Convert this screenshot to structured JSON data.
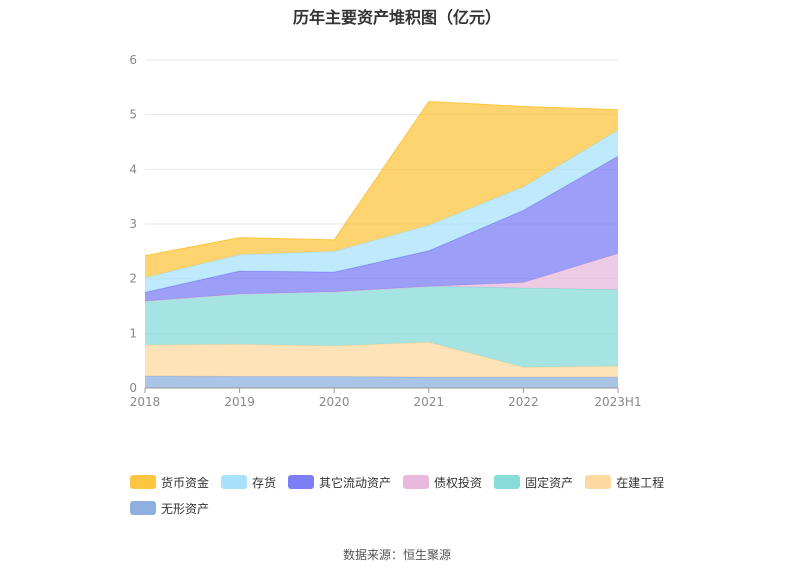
{
  "title": "历年主要资产堆积图（亿元）",
  "source": "数据来源：恒生聚源",
  "chart_data": {
    "type": "area",
    "stacked": true,
    "title": "历年主要资产堆积图（亿元）",
    "xlabel": "",
    "ylabel": "",
    "categories": [
      "2018",
      "2019",
      "2020",
      "2021",
      "2022",
      "2023H1"
    ],
    "ylim": [
      0,
      6
    ],
    "yticks": [
      0,
      1,
      2,
      3,
      4,
      5,
      6
    ],
    "grid": true,
    "legend_position": "bottom",
    "series": [
      {
        "name": "无形资产",
        "color": "#8eb0e0",
        "values": [
          0.22,
          0.21,
          0.21,
          0.2,
          0.2,
          0.2
        ]
      },
      {
        "name": "在建工程",
        "color": "#fdd8a0",
        "values": [
          0.57,
          0.59,
          0.56,
          0.64,
          0.18,
          0.2
        ]
      },
      {
        "name": "固定资产",
        "color": "#87dbd8",
        "values": [
          0.8,
          0.92,
          0.99,
          1.02,
          1.45,
          1.4
        ]
      },
      {
        "name": "债权投资",
        "color": "#e8b9dc",
        "values": [
          0.0,
          0.0,
          0.0,
          0.0,
          0.1,
          0.66
        ]
      },
      {
        "name": "其它流动资产",
        "color": "#7b7ef5",
        "values": [
          0.16,
          0.42,
          0.36,
          0.65,
          1.32,
          1.78
        ]
      },
      {
        "name": "存货",
        "color": "#a9e1fb",
        "values": [
          0.27,
          0.3,
          0.38,
          0.47,
          0.43,
          0.48
        ]
      },
      {
        "name": "货币资金",
        "color": "#fdc540",
        "values": [
          0.4,
          0.31,
          0.21,
          2.26,
          1.47,
          0.37
        ]
      }
    ]
  }
}
